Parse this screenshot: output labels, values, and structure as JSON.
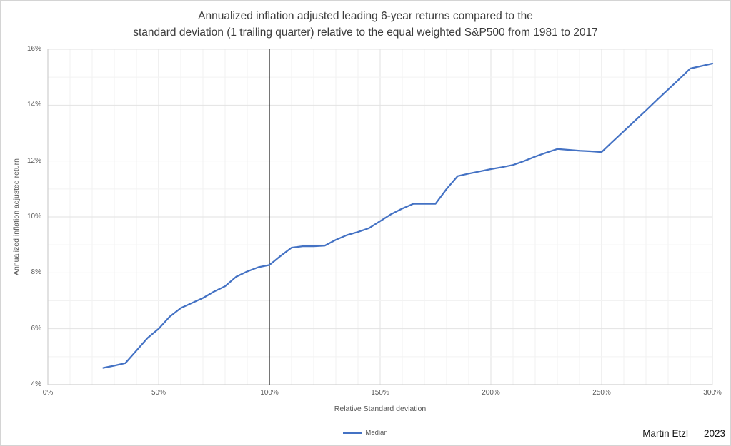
{
  "title": {
    "line1": "Annualized inflation adjusted leading 6-year returns compared to the",
    "line2": "standard deviation (1 trailing quarter) relative to the equal weighted S&P500 from 1981 to 2017"
  },
  "credit": {
    "author": "Martin Etzl",
    "year": "2023"
  },
  "chart_data": {
    "type": "line",
    "title": "Annualized inflation adjusted leading 6-year returns compared to the standard deviation (1 trailing quarter) relative to the equal weighted S&P500 from 1981 to 2017",
    "xlabel": "Relative Standard deviation",
    "ylabel": "Annualized inflation adjusted return",
    "units": "percent",
    "xlim": [
      0,
      300
    ],
    "ylim": [
      4,
      16
    ],
    "x_ticks": [
      0,
      50,
      100,
      150,
      200,
      250,
      300
    ],
    "y_ticks": [
      4,
      6,
      8,
      10,
      12,
      14,
      16
    ],
    "x_minor_step": 10,
    "y_minor_step": 1,
    "grid": true,
    "legend_position": "bottom-center",
    "reference_line_x": 100,
    "colors": {
      "series": "#4472C4",
      "reference_line": "#1a1a1a",
      "major_grid": "#e2e2e2",
      "minor_grid": "#f2f2f2",
      "axis_line": "#c6c6c6"
    },
    "series": [
      {
        "name": "Median",
        "x": [
          25,
          30,
          35,
          40,
          45,
          50,
          55,
          60,
          65,
          70,
          75,
          80,
          85,
          90,
          95,
          100,
          105,
          110,
          115,
          120,
          125,
          130,
          135,
          140,
          145,
          150,
          155,
          160,
          165,
          170,
          175,
          180,
          185,
          190,
          195,
          200,
          205,
          210,
          215,
          220,
          225,
          230,
          235,
          240,
          245,
          250,
          255,
          260,
          265,
          270,
          275,
          280,
          285,
          290,
          295,
          300
        ],
        "y": [
          4.6,
          4.68,
          4.77,
          5.22,
          5.67,
          6.0,
          6.43,
          6.74,
          6.92,
          7.1,
          7.33,
          7.52,
          7.86,
          8.05,
          8.2,
          8.28,
          8.6,
          8.9,
          8.95,
          8.95,
          8.97,
          9.18,
          9.35,
          9.46,
          9.6,
          9.85,
          10.1,
          10.3,
          10.47,
          10.47,
          10.47,
          11.0,
          11.46,
          11.55,
          11.63,
          11.71,
          11.78,
          11.86,
          12.0,
          12.16,
          12.3,
          12.43,
          12.4,
          12.37,
          12.35,
          12.32,
          12.7,
          13.07,
          13.44,
          13.81,
          14.19,
          14.56,
          14.93,
          15.31,
          15.4,
          15.49
        ]
      }
    ]
  }
}
